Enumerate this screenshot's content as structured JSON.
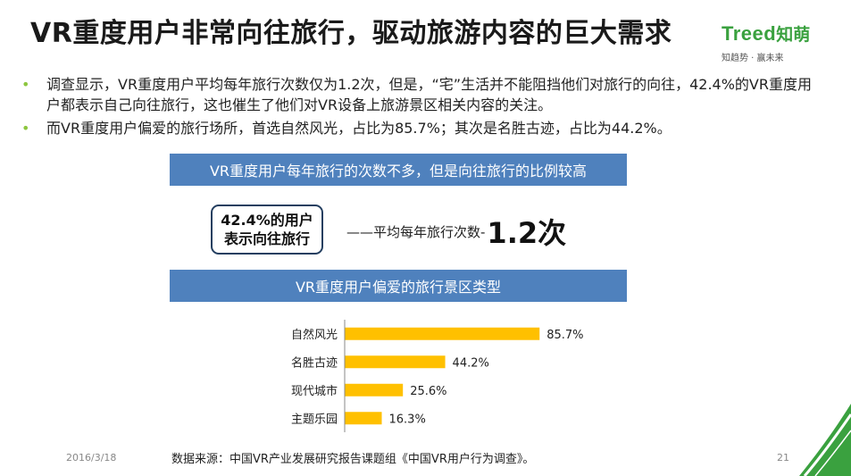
{
  "header": {
    "title": "VR重度用户非常向往旅行，驱动旅游内容的巨大需求"
  },
  "logo": {
    "name_en": "Treed",
    "name_cn": "知萌",
    "tagline": "知趋势 · 赢未来",
    "color": "#3aa13f"
  },
  "bullets": [
    "调查显示，VR重度用户平均每年旅行次数仅为1.2次，但是，“宅”生活并不能阻挡他们对旅行的向往，42.4%的VR重度用户都表示自己向往旅行，这也催生了他们对VR设备上旅游景区相关内容的关注。",
    "而VR重度用户偏爱的旅行场所，首选自然风光，占比为85.7%；其次是名胜古迹，占比为44.2%。"
  ],
  "section1": {
    "banner": "VR重度用户每年旅行的次数不多，但是向往旅行的比例较高",
    "callout_line1": "42.4%的用户",
    "callout_line2": "表示向往旅行",
    "avg_label": "——平均每年旅行次数-",
    "avg_value": "1.2次"
  },
  "section2": {
    "banner": "VR重度用户偏爱的旅行景区类型"
  },
  "chart_data": {
    "type": "bar",
    "orientation": "horizontal",
    "categories": [
      "自然风光",
      "名胜古迹",
      "现代城市",
      "主题乐园"
    ],
    "values": [
      85.7,
      44.2,
      25.6,
      16.3
    ],
    "value_labels": [
      "85.7%",
      "44.2%",
      "25.6%",
      "16.3%"
    ],
    "xlim": [
      0,
      100
    ],
    "grid": false,
    "bar_color": "#ffc000"
  },
  "footer": {
    "date": "2016/3/18",
    "source": "数据来源：中国VR产业发展研究报告课题组《中国VR用户行为调查》。",
    "page": "21"
  },
  "colors": {
    "banner_bg": "#4f81bd",
    "bullet_dot": "#8dc63f",
    "callout_border": "#243f60",
    "corner_green": "#3aa13f"
  }
}
